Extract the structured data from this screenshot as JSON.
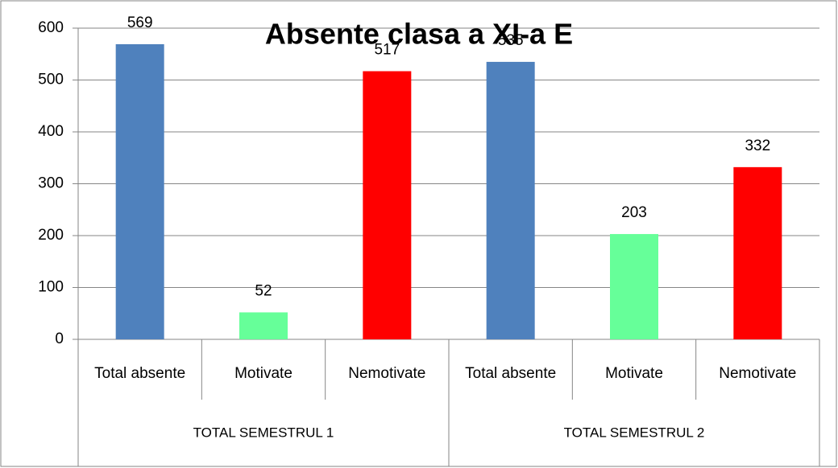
{
  "chart_data": {
    "type": "bar",
    "title": "Absente clasa a XI-a E",
    "groups": [
      {
        "name": "TOTAL SEMESTRUL 1",
        "categories": [
          "Total absente",
          "Motivate",
          "Nemotivate"
        ],
        "values": [
          569,
          52,
          517
        ],
        "colors": [
          "#4f81bd",
          "#66ff99",
          "#ff0000"
        ]
      },
      {
        "name": "TOTAL SEMESTRUL 2",
        "categories": [
          "Total absente",
          "Motivate",
          "Nemotivate"
        ],
        "values": [
          535,
          203,
          332
        ],
        "colors": [
          "#4f81bd",
          "#66ff99",
          "#ff0000"
        ]
      }
    ],
    "ylim": [
      0,
      600
    ],
    "yticks": [
      0,
      100,
      200,
      300,
      400,
      500,
      600
    ],
    "grid": true
  }
}
